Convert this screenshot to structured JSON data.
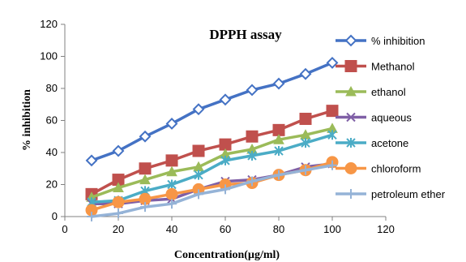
{
  "chart_data": {
    "type": "line",
    "title": "DPPH assay",
    "xlabel": "Concentration(µg/ml)",
    "ylabel": "% inhibition",
    "xlim": [
      0,
      120
    ],
    "ylim": [
      0,
      120
    ],
    "xticks": [
      0,
      20,
      40,
      60,
      80,
      100,
      120
    ],
    "yticks": [
      0,
      20,
      40,
      60,
      80,
      100,
      120
    ],
    "grid": false,
    "legend_position": "right",
    "x": [
      10,
      20,
      30,
      40,
      50,
      60,
      70,
      80,
      90,
      100
    ],
    "series": [
      {
        "name": "% inhibition",
        "color": "#4472C4",
        "marker": "diamond",
        "values": [
          35,
          41,
          50,
          58,
          67,
          73,
          79,
          83,
          89,
          96
        ]
      },
      {
        "name": "Methanol",
        "color": "#C0504D",
        "marker": "square",
        "values": [
          14,
          23,
          30,
          35,
          41,
          45,
          50,
          54,
          61,
          66
        ]
      },
      {
        "name": "ethanol",
        "color": "#9BBB59",
        "marker": "triangle",
        "values": [
          12,
          18,
          23,
          28,
          31,
          39,
          42,
          48,
          51,
          55
        ]
      },
      {
        "name": "aqueous",
        "color": "#7F5FA6",
        "marker": "x",
        "values": [
          8,
          8,
          10,
          11,
          17,
          22,
          23,
          26,
          31,
          33
        ]
      },
      {
        "name": "acetone",
        "color": "#4BACC6",
        "marker": "asterisk",
        "values": [
          9,
          10,
          16,
          20,
          26,
          35,
          38,
          41,
          46,
          51
        ]
      },
      {
        "name": "chloroform",
        "color": "#F79646",
        "marker": "circle",
        "values": [
          4,
          9,
          11,
          14,
          17,
          20,
          21,
          26,
          29,
          34
        ]
      },
      {
        "name": "petroleum ether",
        "color": "#95B3D7",
        "marker": "plus",
        "values": [
          0,
          2,
          6,
          8,
          14,
          17,
          22,
          26,
          29,
          32
        ]
      }
    ]
  }
}
